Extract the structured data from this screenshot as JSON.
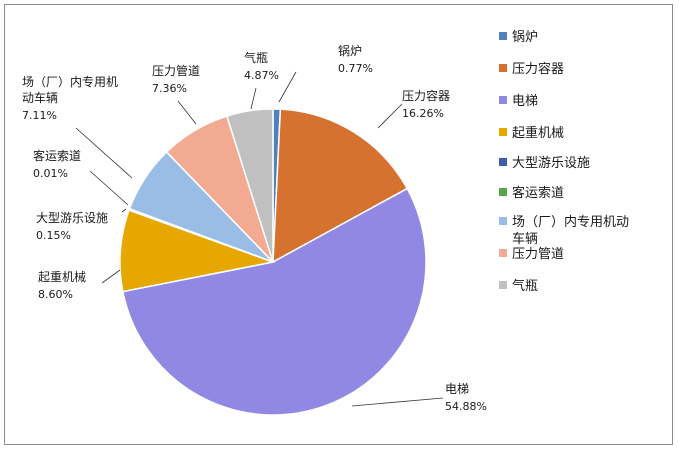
{
  "chart_data": {
    "type": "pie",
    "title": "",
    "categories": [
      "锅炉",
      "压力容器",
      "电梯",
      "起重机械",
      "大型游乐设施",
      "客运索道",
      "场（厂）内专用机动车辆",
      "压力管道",
      "气瓶"
    ],
    "values": [
      0.77,
      16.26,
      54.88,
      8.6,
      0.15,
      0.01,
      7.11,
      7.36,
      4.87
    ],
    "value_labels": [
      "0.77%",
      "16.26%",
      "54.88%",
      "8.60%",
      "0.15%",
      "0.01%",
      "7.11%",
      "7.36%",
      "4.87%"
    ],
    "colors": [
      "#4f81bd",
      "#d6722f",
      "#9088e2",
      "#e6a800",
      "#3b5cb0",
      "#5aa64b",
      "#9abde6",
      "#f2aa92",
      "#c0c0c0"
    ],
    "legend": {
      "position": "right",
      "entries": [
        "锅炉",
        "压力容器",
        "电梯",
        "起重机械",
        "大型游乐设施",
        "客运索道",
        "场（厂）内专用机动车辆",
        "压力管道",
        "气瓶"
      ]
    },
    "data_labels": [
      {
        "name_lines": [
          "锅炉"
        ],
        "pct": "0.77%"
      },
      {
        "name_lines": [
          "压力容器"
        ],
        "pct": "16.26%"
      },
      {
        "name_lines": [
          "电梯"
        ],
        "pct": "54.88%"
      },
      {
        "name_lines": [
          "起重机械"
        ],
        "pct": "8.60%"
      },
      {
        "name_lines": [
          "大型游乐设施"
        ],
        "pct": "0.15%"
      },
      {
        "name_lines": [
          "客运索道"
        ],
        "pct": "0.01%"
      },
      {
        "name_lines": [
          "场（厂）内专用机",
          "动车辆"
        ],
        "pct": "7.11%"
      },
      {
        "name_lines": [
          "压力管道"
        ],
        "pct": "7.36%"
      },
      {
        "name_lines": [
          "气瓶"
        ],
        "pct": "4.87%"
      }
    ]
  }
}
